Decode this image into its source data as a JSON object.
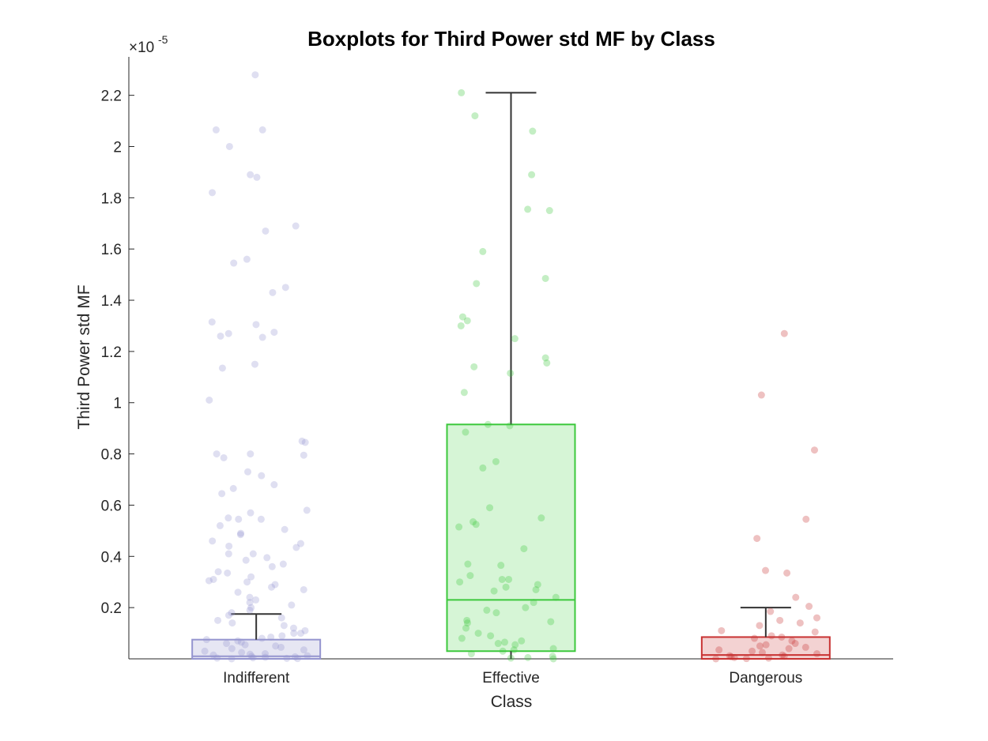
{
  "chart_data": {
    "type": "box",
    "title": "Boxplots for Third Power std MF by Class",
    "xlabel": "Class",
    "ylabel": "Third Power std MF",
    "y_exponent_label": "×10",
    "y_exponent_power": "-5",
    "ylim": [
      0,
      2.35
    ],
    "y_ticks": [
      0.2,
      0.4,
      0.6,
      0.8,
      1,
      1.2,
      1.4,
      1.6,
      1.8,
      2,
      2.2
    ],
    "y_tick_labels": [
      "0.2",
      "0.4",
      "0.6",
      "0.8",
      "1",
      "1.2",
      "1.4",
      "1.6",
      "1.8",
      "2",
      "2.2"
    ],
    "categories": [
      "Indifferent",
      "Effective",
      "Dangerous"
    ],
    "boxes": [
      {
        "category": "Indifferent",
        "color": "#9595cf",
        "fill": "#e6e6f3",
        "q1": 0.0,
        "median": 0.01,
        "q3": 0.075,
        "whisker_low": 0.0,
        "whisker_high": 0.175,
        "points": [
          2.28,
          2.065,
          2.065,
          2.0,
          1.89,
          1.88,
          1.82,
          1.69,
          1.67,
          1.56,
          1.545,
          1.45,
          1.43,
          1.315,
          1.305,
          1.27,
          1.275,
          1.26,
          1.255,
          1.15,
          1.135,
          1.01,
          0.85,
          0.845,
          0.8,
          0.8,
          0.795,
          0.785,
          0.73,
          0.715,
          0.68,
          0.665,
          0.645,
          0.58,
          0.57,
          0.55,
          0.545,
          0.545,
          0.52,
          0.505,
          0.49,
          0.485,
          0.46,
          0.45,
          0.44,
          0.435,
          0.41,
          0.41,
          0.395,
          0.385,
          0.37,
          0.36,
          0.34,
          0.335,
          0.32,
          0.31,
          0.305,
          0.3,
          0.29,
          0.28,
          0.27,
          0.26,
          0.24,
          0.23,
          0.22,
          0.21,
          0.2,
          0.19,
          0.18,
          0.17,
          0.16,
          0.15,
          0.14,
          0.13,
          0.12,
          0.11,
          0.1,
          0.1,
          0.09,
          0.085,
          0.08,
          0.075,
          0.07,
          0.065,
          0.06,
          0.055,
          0.05,
          0.045,
          0.04,
          0.035,
          0.03,
          0.025,
          0.02,
          0.018,
          0.015,
          0.012,
          0.01,
          0.008,
          0.006,
          0.004,
          0.003,
          0.002,
          0.001,
          0.0
        ]
      },
      {
        "category": "Effective",
        "color": "#3cc83c",
        "fill": "#d6f5d6",
        "q1": 0.03,
        "median": 0.23,
        "q3": 0.915,
        "whisker_low": 0.0,
        "whisker_high": 2.21,
        "points": [
          2.21,
          2.12,
          2.06,
          1.89,
          1.755,
          1.75,
          1.59,
          1.485,
          1.465,
          1.335,
          1.32,
          1.3,
          1.25,
          1.175,
          1.155,
          1.14,
          1.115,
          1.04,
          0.915,
          0.91,
          0.885,
          0.77,
          0.745,
          0.59,
          0.55,
          0.535,
          0.525,
          0.515,
          0.43,
          0.37,
          0.365,
          0.325,
          0.31,
          0.31,
          0.3,
          0.29,
          0.28,
          0.27,
          0.265,
          0.24,
          0.22,
          0.2,
          0.19,
          0.18,
          0.15,
          0.145,
          0.14,
          0.12,
          0.1,
          0.09,
          0.08,
          0.07,
          0.065,
          0.06,
          0.055,
          0.04,
          0.035,
          0.03,
          0.02,
          0.01,
          0.005,
          0.003,
          0.0
        ]
      },
      {
        "category": "Dangerous",
        "color": "#c83232",
        "fill": "#f3d2d2",
        "q1": 0.0,
        "median": 0.015,
        "q3": 0.085,
        "whisker_low": 0.0,
        "whisker_high": 0.2,
        "points": [
          1.27,
          1.03,
          0.815,
          0.545,
          0.47,
          0.345,
          0.335,
          0.24,
          0.205,
          0.185,
          0.16,
          0.15,
          0.14,
          0.13,
          0.11,
          0.105,
          0.09,
          0.085,
          0.08,
          0.07,
          0.06,
          0.055,
          0.05,
          0.045,
          0.04,
          0.035,
          0.03,
          0.025,
          0.02,
          0.015,
          0.012,
          0.01,
          0.008,
          0.005,
          0.003,
          0.001,
          0.0
        ]
      }
    ]
  }
}
